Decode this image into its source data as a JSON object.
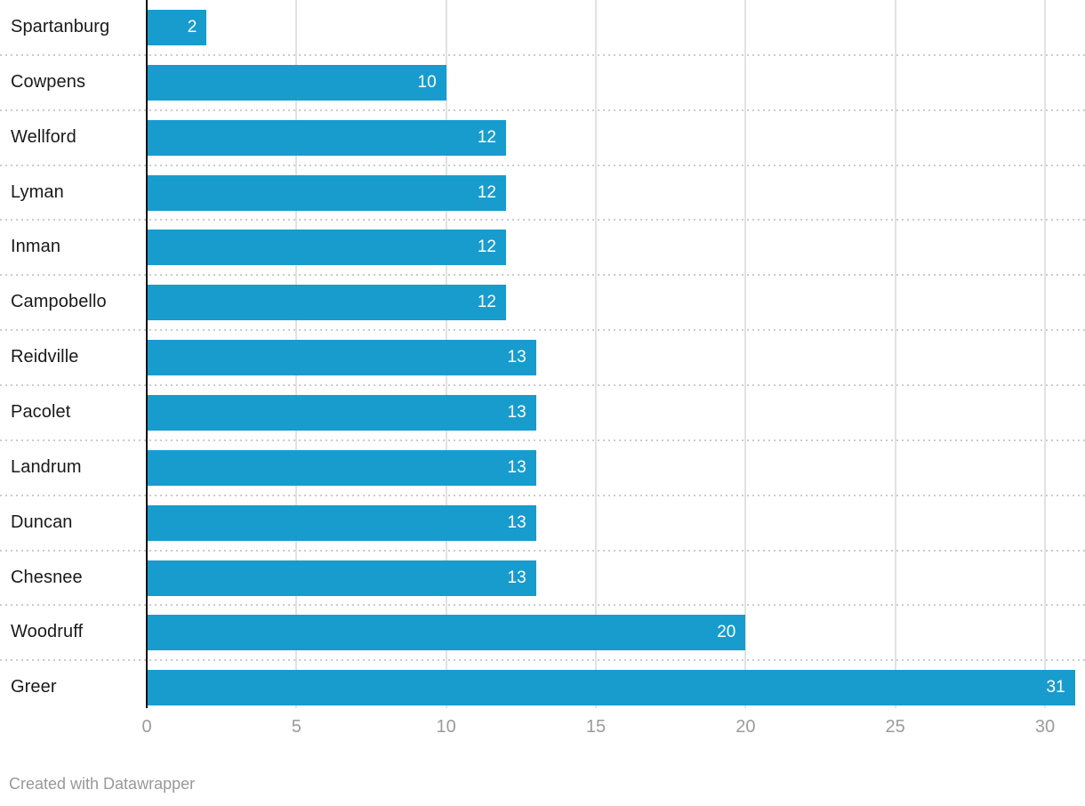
{
  "chart_data": {
    "type": "bar",
    "orientation": "horizontal",
    "title": "",
    "xlabel": "",
    "ylabel": "",
    "categories": [
      "Spartanburg",
      "Cowpens",
      "Wellford",
      "Lyman",
      "Inman",
      "Campobello",
      "Reidville",
      "Pacolet",
      "Landrum",
      "Duncan",
      "Chesnee",
      "Woodruff",
      "Greer"
    ],
    "values": [
      2,
      10,
      12,
      12,
      12,
      12,
      13,
      13,
      13,
      13,
      13,
      20,
      31
    ],
    "value_labels": [
      "2",
      "10",
      "12",
      "12",
      "12",
      "12",
      "13",
      "13",
      "13",
      "13",
      "13",
      "20",
      "31"
    ],
    "xticks": [
      0,
      5,
      10,
      15,
      20,
      25,
      30
    ],
    "xlim": [
      0,
      31.35
    ],
    "grid": "vertical gridlines on, dotted horizontal row separators",
    "legend": "none",
    "value_label_position": "inside-end"
  },
  "footer": {
    "credit": "Created with Datawrapper"
  },
  "colors": {
    "bar": "#189cce",
    "category_label": "#1a1a1a",
    "value_label": "#ffffff",
    "tick_label": "#9b9b9b",
    "footer_text": "#999999",
    "gridline": "#e2e2e2",
    "separator": "#cccccc",
    "axis_line": "#121212"
  }
}
